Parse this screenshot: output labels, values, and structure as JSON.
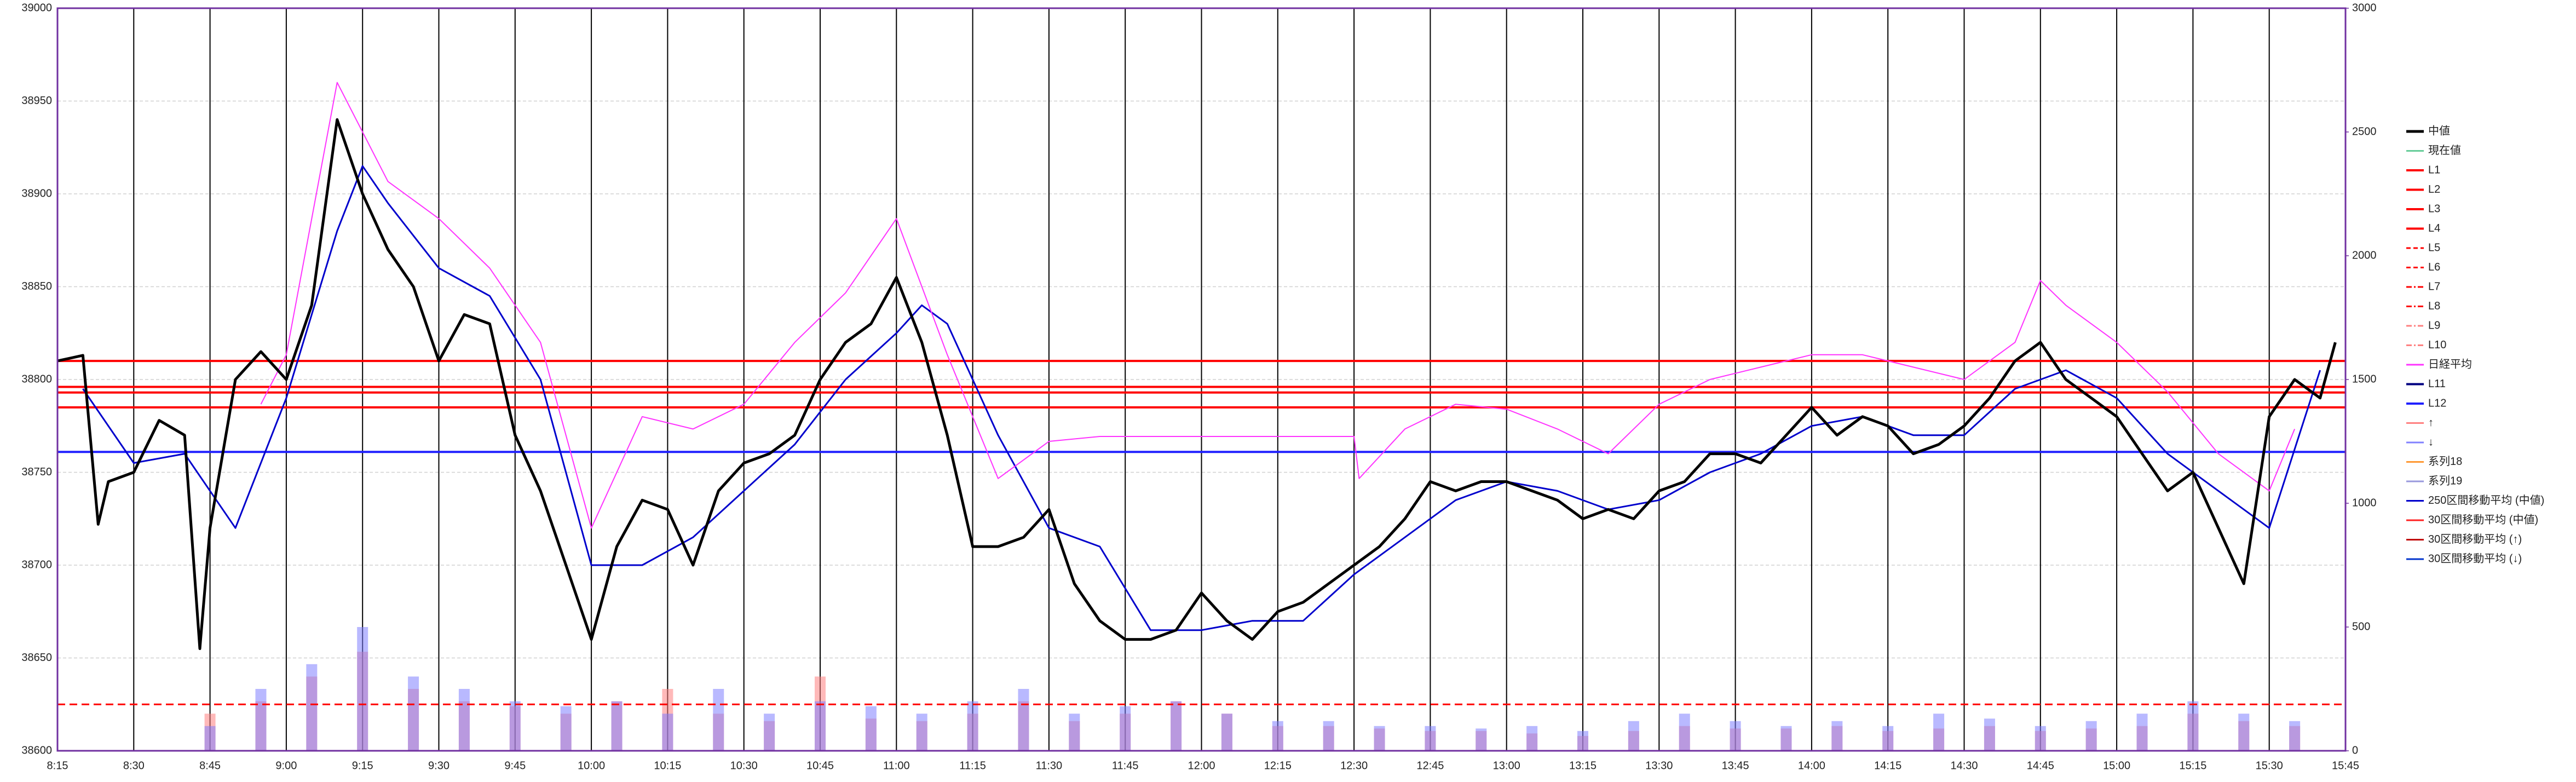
{
  "chart_data": {
    "type": "line",
    "xlim": [
      495,
      945
    ],
    "xticks": [
      {
        "value": 495,
        "label": "8:15"
      },
      {
        "value": 510,
        "label": "8:30"
      },
      {
        "value": 525,
        "label": "8:45"
      },
      {
        "value": 540,
        "label": "9:00"
      },
      {
        "value": 555,
        "label": "9:15"
      },
      {
        "value": 570,
        "label": "9:30"
      },
      {
        "value": 585,
        "label": "9:45"
      },
      {
        "value": 600,
        "label": "10:00"
      },
      {
        "value": 615,
        "label": "10:15"
      },
      {
        "value": 630,
        "label": "10:30"
      },
      {
        "value": 645,
        "label": "10:45"
      },
      {
        "value": 660,
        "label": "11:00"
      },
      {
        "value": 675,
        "label": "11:15"
      },
      {
        "value": 690,
        "label": "11:30"
      },
      {
        "value": 705,
        "label": "11:45"
      },
      {
        "value": 720,
        "label": "12:00"
      },
      {
        "value": 735,
        "label": "12:15"
      },
      {
        "value": 750,
        "label": "12:30"
      },
      {
        "value": 765,
        "label": "12:45"
      },
      {
        "value": 780,
        "label": "13:00"
      },
      {
        "value": 795,
        "label": "13:15"
      },
      {
        "value": 810,
        "label": "13:30"
      },
      {
        "value": 825,
        "label": "13:45"
      },
      {
        "value": 840,
        "label": "14:00"
      },
      {
        "value": 855,
        "label": "14:15"
      },
      {
        "value": 870,
        "label": "14:30"
      },
      {
        "value": 885,
        "label": "14:45"
      },
      {
        "value": 900,
        "label": "15:00"
      },
      {
        "value": 915,
        "label": "15:15"
      },
      {
        "value": 930,
        "label": "15:30"
      },
      {
        "value": 945,
        "label": "15:45"
      }
    ],
    "ylim": [
      38600,
      39000
    ],
    "yticks": [
      38600,
      38650,
      38700,
      38750,
      38800,
      38850,
      38900,
      38950,
      39000
    ],
    "y2lim": [
      0,
      3000
    ],
    "y2ticks": [
      0,
      500,
      1000,
      1500,
      2000,
      2500,
      3000
    ],
    "grid": true,
    "legend": "right",
    "series": [
      {
        "name": "中値",
        "color": "#000000",
        "width": 5,
        "x": [
          495,
          500,
          503,
          505,
          510,
          515,
          520,
          523,
          525,
          530,
          535,
          540,
          545,
          550,
          555,
          560,
          565,
          570,
          575,
          580,
          585,
          590,
          595,
          600,
          605,
          610,
          615,
          620,
          625,
          630,
          635,
          640,
          645,
          650,
          655,
          660,
          665,
          670,
          675,
          680,
          685,
          690,
          695,
          700,
          705,
          710,
          715,
          720,
          725,
          730,
          735,
          740,
          745,
          750,
          755,
          760,
          765,
          770,
          775,
          780,
          785,
          790,
          795,
          800,
          805,
          810,
          815,
          820,
          825,
          830,
          835,
          840,
          845,
          850,
          855,
          860,
          865,
          870,
          875,
          880,
          885,
          890,
          895,
          900,
          905,
          910,
          915,
          920,
          925,
          930,
          935,
          940,
          943
        ],
        "values": [
          38810,
          38813,
          38722,
          38745,
          38750,
          38778,
          38770,
          38655,
          38720,
          38800,
          38815,
          38800,
          38840,
          38940,
          38900,
          38870,
          38850,
          38810,
          38835,
          38830,
          38770,
          38740,
          38700,
          38660,
          38710,
          38735,
          38730,
          38700,
          38740,
          38755,
          38760,
          38770,
          38800,
          38820,
          38830,
          38855,
          38820,
          38770,
          38710,
          38710,
          38715,
          38730,
          38690,
          38670,
          38660,
          38660,
          38665,
          38685,
          38670,
          38660,
          38675,
          38680,
          38690,
          38700,
          38710,
          38725,
          38745,
          38740,
          38745,
          38745,
          38740,
          38735,
          38725,
          38730,
          38725,
          38740,
          38745,
          38760,
          38760,
          38755,
          38770,
          38785,
          38770,
          38780,
          38775,
          38760,
          38765,
          38775,
          38790,
          38810,
          38820,
          38800,
          38790,
          38780,
          38760,
          38740,
          38750,
          38720,
          38690,
          38780,
          38800,
          38790,
          38820
        ]
      },
      {
        "name": "現在値",
        "color": "#66cc99",
        "width": 2
      },
      {
        "name": "L1",
        "color": "#ff0000",
        "width": 4,
        "level": 38810
      },
      {
        "name": "L2",
        "color": "#ff0000",
        "width": 4,
        "level": 38796
      },
      {
        "name": "L3",
        "color": "#ff0000",
        "width": 4,
        "level": 38793
      },
      {
        "name": "L4",
        "color": "#ff0000",
        "width": 4,
        "level": 38785
      },
      {
        "name": "L5",
        "color": "#ff0000",
        "width": 3,
        "dash": "dash",
        "level": 38625
      },
      {
        "name": "L6",
        "color": "#ff0000",
        "width": 3,
        "dash": "dash"
      },
      {
        "name": "L7",
        "color": "#ff0000",
        "width": 3,
        "dash": "dashdot"
      },
      {
        "name": "L8",
        "color": "#ff0000",
        "width": 3,
        "dash": "dashdot"
      },
      {
        "name": "L9",
        "color": "#ff8080",
        "width": 3,
        "dash": "dashdot"
      },
      {
        "name": "L10",
        "color": "#ff8080",
        "width": 3,
        "dash": "dashdot"
      },
      {
        "name": "日経平均",
        "color": "#ff33ff",
        "width": 2,
        "axis": "y2",
        "x": [
          535,
          540,
          550,
          560,
          570,
          580,
          590,
          600,
          610,
          620,
          630,
          640,
          650,
          660,
          670,
          680,
          690,
          700,
          750,
          751,
          760,
          770,
          780,
          790,
          800,
          810,
          820,
          830,
          840,
          850,
          860,
          870,
          880,
          885,
          890,
          900,
          910,
          920,
          930,
          935
        ],
        "values": [
          1400,
          1600,
          2700,
          2300,
          2150,
          1950,
          1650,
          900,
          1350,
          1300,
          1400,
          1650,
          1850,
          2150,
          1600,
          1100,
          1250,
          1270,
          1270,
          1100,
          1300,
          1400,
          1380,
          1300,
          1200,
          1400,
          1500,
          1550,
          1600,
          1600,
          1550,
          1500,
          1650,
          1900,
          1800,
          1650,
          1450,
          1200,
          1050,
          1300
        ]
      },
      {
        "name": "L11",
        "color": "#000080",
        "width": 4
      },
      {
        "name": "L12",
        "color": "#2020ff",
        "width": 4,
        "level": 38761
      },
      {
        "name": "↑",
        "color": "#ff8080",
        "width": 3,
        "axis": "y2",
        "bars": true,
        "x": [
          525,
          535,
          545,
          555,
          565,
          575,
          585,
          595,
          605,
          615,
          625,
          635,
          645,
          655,
          665,
          675,
          685,
          695,
          705,
          715,
          725,
          735,
          745,
          755,
          765,
          775,
          785,
          795,
          805,
          815,
          825,
          835,
          845,
          855,
          865,
          875,
          885,
          895,
          905,
          915,
          925,
          935
        ],
        "values": [
          150,
          200,
          300,
          400,
          250,
          200,
          180,
          150,
          200,
          250,
          150,
          120,
          300,
          130,
          120,
          150,
          200,
          120,
          150,
          200,
          150,
          100,
          100,
          90,
          80,
          80,
          70,
          60,
          80,
          100,
          90,
          90,
          100,
          80,
          90,
          100,
          80,
          90,
          100,
          150,
          120,
          100
        ]
      },
      {
        "name": "↓",
        "color": "#8080ff",
        "width": 3,
        "axis": "y2",
        "bars": true,
        "x": [
          525,
          535,
          545,
          555,
          565,
          575,
          585,
          595,
          605,
          615,
          625,
          635,
          645,
          655,
          665,
          675,
          685,
          695,
          705,
          715,
          725,
          735,
          745,
          755,
          765,
          775,
          785,
          795,
          805,
          815,
          825,
          835,
          845,
          855,
          865,
          875,
          885,
          895,
          905,
          915,
          925,
          935
        ],
        "values": [
          100,
          250,
          350,
          500,
          300,
          250,
          200,
          180,
          200,
          150,
          250,
          150,
          200,
          180,
          150,
          200,
          250,
          150,
          180,
          200,
          150,
          120,
          120,
          100,
          100,
          90,
          100,
          80,
          120,
          150,
          120,
          100,
          120,
          100,
          150,
          130,
          100,
          120,
          150,
          200,
          150,
          120
        ]
      },
      {
        "name": "系列18",
        "color": "#ff9933",
        "width": 3
      },
      {
        "name": "系列19",
        "color": "#9999dd",
        "width": 3
      },
      {
        "name": "250区間移動平均 (中値)",
        "color": "#0000cc",
        "width": 3,
        "x": [
          500,
          510,
          520,
          530,
          540,
          550,
          555,
          560,
          570,
          580,
          590,
          600,
          610,
          620,
          630,
          640,
          650,
          660,
          665,
          670,
          680,
          690,
          700,
          710,
          720,
          730,
          740,
          750,
          760,
          770,
          780,
          790,
          800,
          810,
          820,
          830,
          840,
          850,
          860,
          870,
          880,
          890,
          900,
          910,
          920,
          930,
          940
        ],
        "values": [
          38795,
          38755,
          38760,
          38720,
          38790,
          38880,
          38915,
          38895,
          38860,
          38845,
          38800,
          38700,
          38700,
          38715,
          38740,
          38765,
          38800,
          38825,
          38840,
          38830,
          38770,
          38720,
          38710,
          38665,
          38665,
          38670,
          38670,
          38695,
          38715,
          38735,
          38745,
          38740,
          38730,
          38735,
          38750,
          38760,
          38775,
          38780,
          38770,
          38770,
          38795,
          38805,
          38790,
          38760,
          38740,
          38720,
          38805
        ]
      },
      {
        "name": "30区間移動平均 (中値)",
        "color": "#ff2020",
        "width": 3
      },
      {
        "name": "30区間移動平均 (↑)",
        "color": "#c00000",
        "width": 3
      },
      {
        "name": "30区間移動平均 (↓)",
        "color": "#0033cc",
        "width": 3
      }
    ]
  }
}
